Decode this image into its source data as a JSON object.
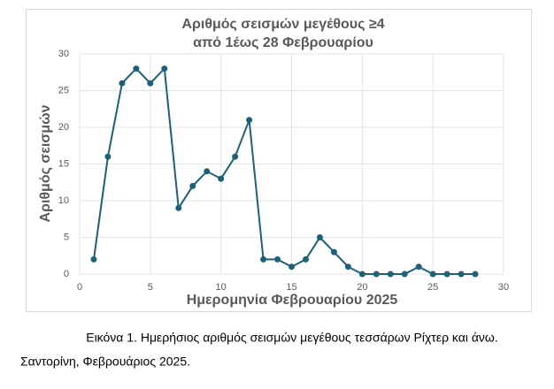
{
  "chart_data": {
    "type": "line",
    "title": [
      "Αριθμός σεισμών μεγέθους ≥4",
      "από 1έως 28 Φεβρουαρίου"
    ],
    "x_label": "Ημερομηνία Φεβρουαρίου 2025",
    "y_label": "Αριθμός σεισμών",
    "x": [
      1,
      2,
      3,
      4,
      5,
      6,
      7,
      8,
      9,
      10,
      11,
      12,
      13,
      14,
      15,
      16,
      17,
      18,
      19,
      20,
      21,
      22,
      23,
      24,
      25,
      26,
      27,
      28
    ],
    "values": [
      2,
      16,
      26,
      28,
      26,
      28,
      9,
      12,
      14,
      13,
      16,
      21,
      2,
      2,
      1,
      2,
      5,
      3,
      1,
      0,
      0,
      0,
      0,
      1,
      0,
      0,
      0,
      0
    ],
    "color": "#1f5f78",
    "xlim": [
      0,
      30
    ],
    "xticks": [
      0,
      5,
      10,
      15,
      20,
      25,
      30
    ],
    "ylim": [
      0,
      30
    ],
    "yticks": [
      0,
      5,
      10,
      15,
      20,
      25,
      30
    ],
    "grid": true
  },
  "caption": [
    "Εικόνα 1. Ημερήσιος αριθμός σεισμών μεγέθους τεσσάρων Ρίχτερ και άνω.",
    "Σαντορίνη, Φεβρουάριος 2025."
  ]
}
